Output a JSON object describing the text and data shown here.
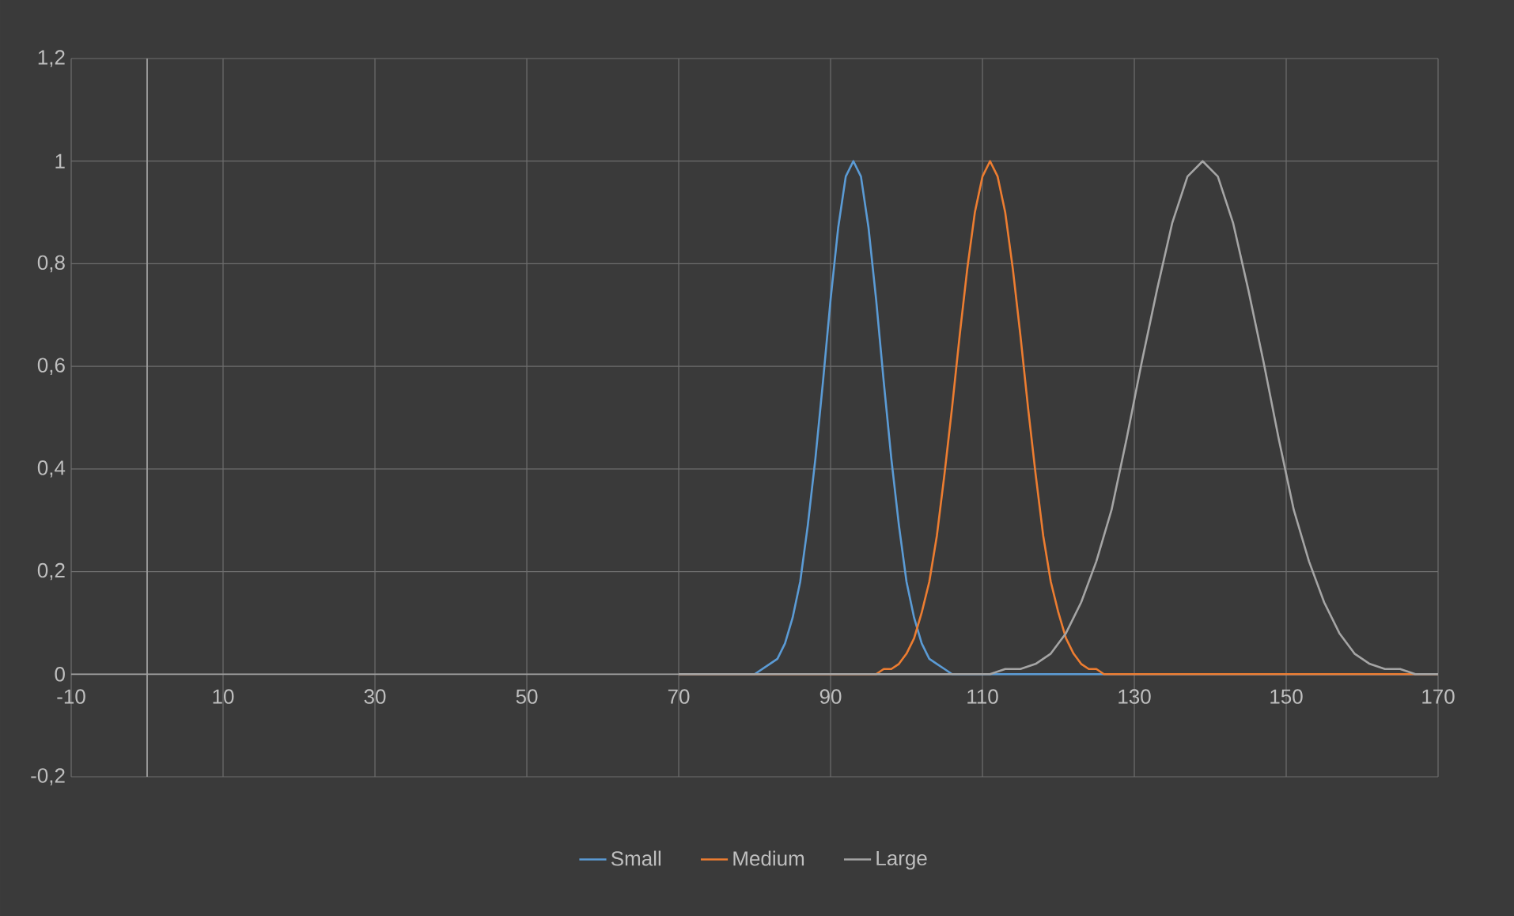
{
  "chart_data": {
    "type": "line",
    "xlim": [
      -10,
      170
    ],
    "xticks": [
      -10,
      10,
      30,
      50,
      70,
      90,
      110,
      130,
      150,
      170
    ],
    "ylim": [
      -0.2,
      1.2
    ],
    "yticks": [
      {
        "value": -0.2,
        "label": "-0,2"
      },
      0,
      {
        "value": 0.2,
        "label": "0,2"
      },
      {
        "value": 0.4,
        "label": "0,4"
      },
      {
        "value": 0.6,
        "label": "0,6"
      },
      {
        "value": 0.8,
        "label": "0,8"
      },
      1,
      {
        "value": 1.2,
        "label": "1,2"
      }
    ],
    "grid": true,
    "legend": "bottom",
    "series": [
      {
        "name": "Small",
        "color": "#5b9bd5",
        "x": [
          70,
          79,
          80,
          81,
          82,
          83,
          84,
          85,
          86,
          87,
          88,
          89,
          90,
          91,
          92,
          93,
          94,
          95,
          96,
          97,
          98,
          99,
          100,
          101,
          102,
          103,
          104,
          105,
          106,
          107,
          170
        ],
        "values": [
          0,
          0,
          0,
          0.01,
          0.02,
          0.03,
          0.06,
          0.11,
          0.18,
          0.29,
          0.42,
          0.57,
          0.73,
          0.87,
          0.97,
          1,
          0.97,
          0.87,
          0.73,
          0.57,
          0.42,
          0.29,
          0.18,
          0.11,
          0.06,
          0.03,
          0.02,
          0.01,
          0,
          0,
          0
        ]
      },
      {
        "name": "Medium",
        "color": "#ed7d31",
        "x": [
          70,
          95,
          96,
          97,
          98,
          99,
          100,
          101,
          102,
          103,
          104,
          105,
          106,
          107,
          108,
          109,
          110,
          111,
          112,
          113,
          114,
          115,
          116,
          117,
          118,
          119,
          120,
          121,
          122,
          123,
          124,
          125,
          126,
          127,
          170
        ],
        "values": [
          0,
          0,
          0,
          0.01,
          0.01,
          0.02,
          0.04,
          0.07,
          0.12,
          0.18,
          0.27,
          0.39,
          0.52,
          0.66,
          0.79,
          0.9,
          0.97,
          1,
          0.97,
          0.9,
          0.79,
          0.66,
          0.52,
          0.39,
          0.27,
          0.18,
          0.12,
          0.07,
          0.04,
          0.02,
          0.01,
          0.01,
          0,
          0,
          0
        ]
      },
      {
        "name": "Large",
        "color": "#a5a5a5",
        "x": [
          70,
          111,
          113,
          115,
          117,
          119,
          121,
          123,
          125,
          127,
          129,
          131,
          133,
          135,
          137,
          139,
          141,
          143,
          145,
          147,
          149,
          151,
          153,
          155,
          157,
          159,
          161,
          163,
          165,
          167,
          170
        ],
        "values": [
          0,
          0,
          0.01,
          0.01,
          0.02,
          0.04,
          0.08,
          0.14,
          0.22,
          0.32,
          0.46,
          0.61,
          0.75,
          0.88,
          0.97,
          1,
          0.97,
          0.88,
          0.75,
          0.61,
          0.46,
          0.32,
          0.22,
          0.14,
          0.08,
          0.04,
          0.02,
          0.01,
          0.01,
          0,
          0
        ]
      }
    ]
  }
}
